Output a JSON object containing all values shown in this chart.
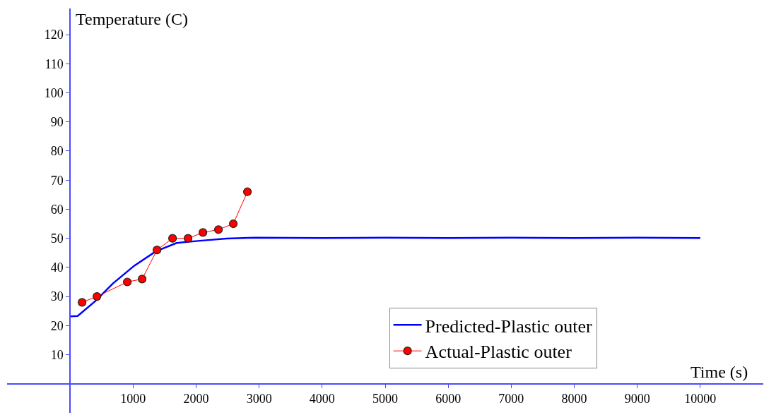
{
  "chart_data": {
    "type": "line",
    "xlabel": "Time (s)",
    "ylabel": "Temperature (C)",
    "xlim": [
      -1000,
      11000
    ],
    "ylim": [
      -10,
      129
    ],
    "xticks": [
      1000,
      2000,
      3000,
      4000,
      5000,
      6000,
      7000,
      8000,
      9000,
      10000
    ],
    "yticks": [
      10,
      20,
      30,
      40,
      50,
      60,
      70,
      80,
      90,
      100,
      110,
      120
    ],
    "grid": false,
    "legend": "bottom right",
    "series": [
      {
        "name": "Predicted-Plastic outer",
        "color": "#0000ff",
        "marker": "none",
        "x": [
          0,
          120,
          400,
          680,
          1020,
          1360,
          1690,
          2030,
          2480,
          2930,
          4000,
          5000,
          6000,
          7000,
          8000,
          9000,
          10000
        ],
        "values": [
          23.2,
          23.3,
          28.4,
          34.5,
          40.6,
          45.5,
          48.4,
          49.1,
          49.9,
          50.2,
          50.1,
          50.2,
          50.1,
          50.2,
          50.1,
          50.2,
          50.1
        ]
      },
      {
        "name": "Actual-Plastic outer",
        "color": "#ff0000",
        "marker": "circle",
        "x": [
          190,
          426,
          908,
          1143,
          1379,
          1626,
          1872,
          2108,
          2354,
          2590,
          2814
        ],
        "values": [
          28,
          30,
          35,
          36,
          46,
          50,
          50,
          52,
          53,
          55,
          66
        ]
      }
    ]
  }
}
